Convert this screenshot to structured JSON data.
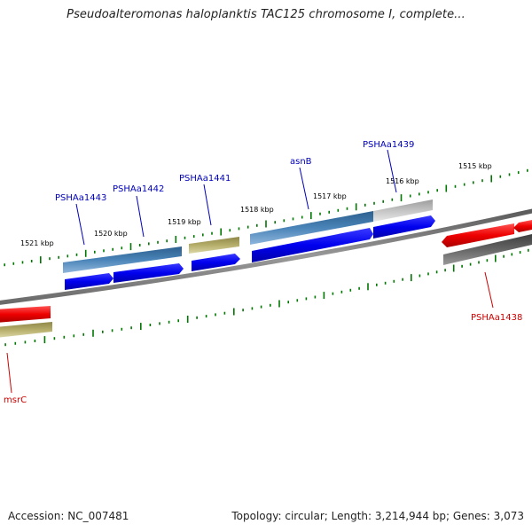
{
  "title": "Pseudoalteromonas haloplanktis TAC125 chromosome I, complete...",
  "footer": {
    "accession": "Accession: NC_007481",
    "summary": "Topology: circular; Length: 3,214,944 bp; Genes: 3,073"
  },
  "scale_labels": [
    "1521 kbp",
    "1520 kbp",
    "1519 kbp",
    "1518 kbp",
    "1517 kbp",
    "1516 kbp",
    "1515 kbp"
  ],
  "gene_labels": [
    "PSHAa1443",
    "PSHAa1442",
    "PSHAa1441",
    "asnB",
    "PSHAa1439",
    "PSHAa1438",
    "msrC"
  ],
  "colors": {
    "label_blue": "#0000bb",
    "label_red": "#cc0000",
    "tick_green": "#007700",
    "cds_blue": "#0000ee",
    "cds_red": "#ee0000",
    "steel_blue": "#4a84b8",
    "khaki": "#b5ad6a",
    "light_gray": "#c4c4c4",
    "dark_gray": "#666666",
    "backbone": "#808080"
  }
}
